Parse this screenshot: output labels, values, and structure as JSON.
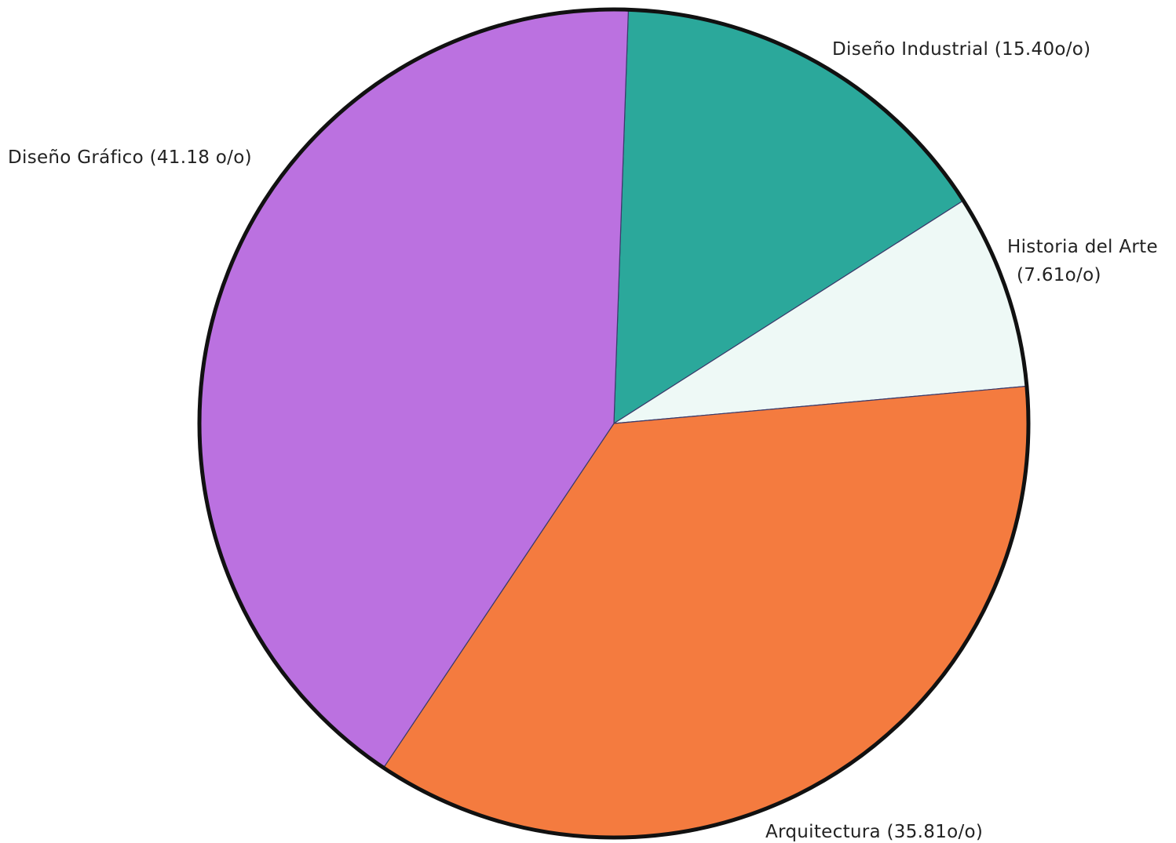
{
  "chart_data": {
    "type": "pie",
    "title": "",
    "start_angle_deg": 2,
    "direction": "clockwise",
    "slices": [
      {
        "name": "Diseño Industrial",
        "value": 15.4,
        "label_lines": [
          "Diseño Industrial (15.40o/o)"
        ],
        "color": "#2ba89b"
      },
      {
        "name": "Historia del Arte",
        "value": 7.61,
        "label_lines": [
          "Historia del Arte",
          "(7.61o/o)"
        ],
        "color": "#eef9f6"
      },
      {
        "name": "Arquitectura",
        "value": 35.81,
        "label_lines": [
          "Arquitectura (35.81o/o)"
        ],
        "color": "#f47b3f"
      },
      {
        "name": "Diseño Gráfico",
        "value": 41.18,
        "label_lines": [
          "Diseño Gráfico (41.18 o/o)"
        ],
        "color": "#bb71e0"
      }
    ],
    "outline_color": "#111111"
  }
}
